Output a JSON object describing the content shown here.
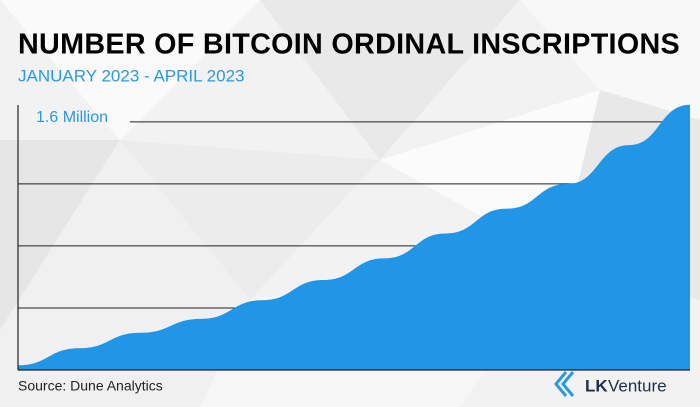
{
  "chart_data": {
    "type": "area",
    "title": "NUMBER OF BITCOIN ORDINAL INSCRIPTIONS",
    "subtitle": "JANUARY 2023 - APRIL 2023",
    "categories": [
      null,
      null,
      null,
      null,
      null,
      null,
      null,
      null,
      null,
      null,
      null,
      null
    ],
    "values": [
      30000,
      140000,
      240000,
      330000,
      450000,
      580000,
      720000,
      880000,
      1040000,
      1200000,
      1450000,
      1710000
    ],
    "color": "#2196e6",
    "ylim": [
      0,
      1760000
    ],
    "yticks": [
      {
        "value": 400000,
        "label": null
      },
      {
        "value": 800000,
        "label": null
      },
      {
        "value": 1200000,
        "label": null
      },
      {
        "value": 1600000,
        "label": "1.6 Million"
      }
    ],
    "grid": true,
    "source": "Source: Dune Analytics",
    "brand": [
      "LK",
      "Venture"
    ]
  }
}
